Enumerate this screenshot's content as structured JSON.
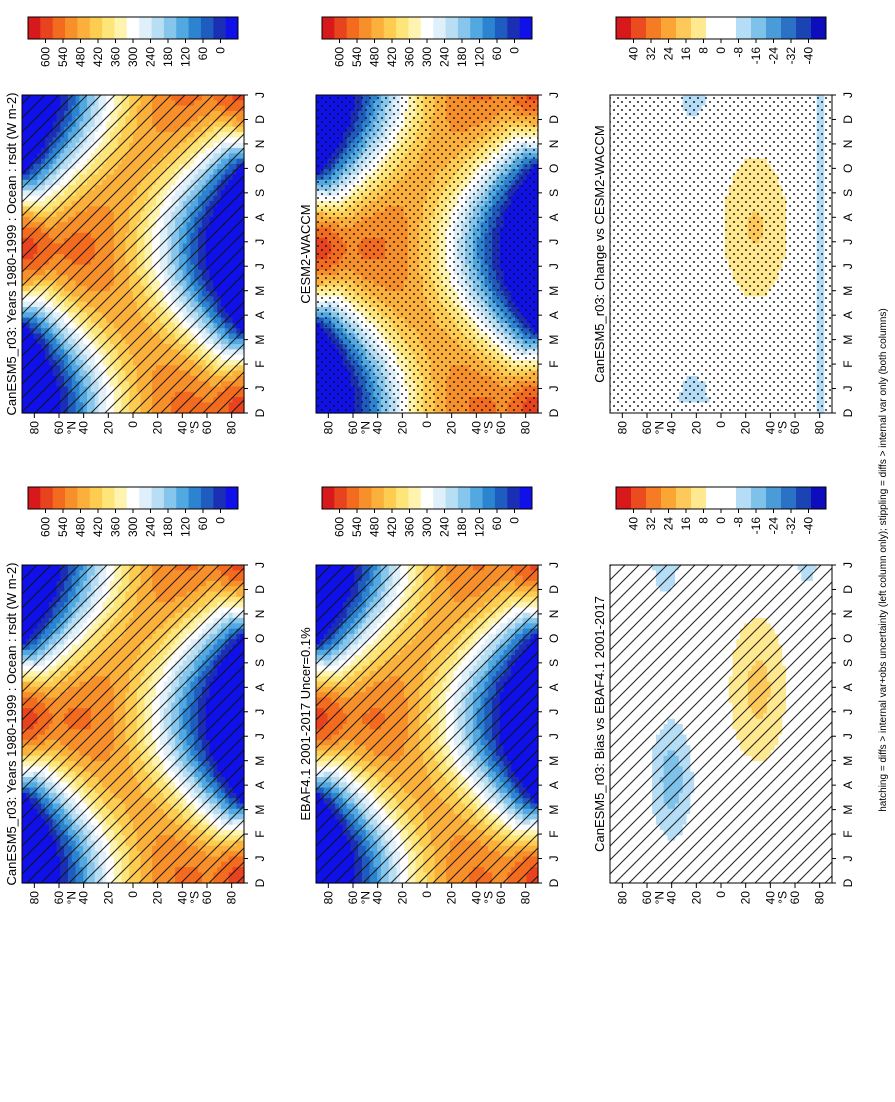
{
  "footnote": "hatching = diffs > internal var+obs uncertainty (left column only); stippling = diffs > internal var only (both columns)",
  "months": [
    "D",
    "J",
    "F",
    "M",
    "A",
    "M",
    "J",
    "J",
    "A",
    "S",
    "O",
    "N",
    "D",
    "J"
  ],
  "lat_ticks": [
    "80",
    "60",
    "40",
    "20",
    "0",
    "20",
    "40",
    "60",
    "80"
  ],
  "lat_unit": "°N / °S",
  "lat_N": "°N",
  "lat_S": "°S",
  "colorbar_abs_ticks": [
    "600",
    "540",
    "480",
    "420",
    "360",
    "300",
    "240",
    "180",
    "120",
    "60",
    "0"
  ],
  "colorbar_diff_ticks": [
    "40",
    "32",
    "24",
    "16",
    "8",
    "0",
    "-8",
    "-16",
    "-24",
    "-32",
    "-40"
  ],
  "palette_abs": [
    "#d7191c",
    "#e8431f",
    "#f26b1f",
    "#f7902a",
    "#fbb03b",
    "#fdcc50",
    "#fee57a",
    "#fff3b0",
    "#ffffff",
    "#e0f0fb",
    "#b8def4",
    "#86c6ec",
    "#52a8e0",
    "#2c84d0",
    "#1f5cc0",
    "#1b2fb5",
    "#1010e8"
  ],
  "palette_diff": [
    "#d7191c",
    "#ea4b1f",
    "#f57b25",
    "#fba534",
    "#fdc95a",
    "#fee890",
    "#ffffff",
    "#ffffff",
    "#b5def6",
    "#7ec2ea",
    "#4a9cd8",
    "#2b72c6",
    "#1a44b4",
    "#0d0dbd"
  ],
  "chart_data": [
    {
      "type": "heatmap",
      "panel": "top-left",
      "title": "CanESM5_r03: Years 1980-1999 : Ocean : rsdt",
      "units": "(W m-2)",
      "x": "month",
      "y": "latitude",
      "ylim": [
        -90,
        90
      ],
      "colorbar": "0 to 600",
      "overlay": "hatching"
    },
    {
      "type": "heatmap",
      "panel": "middle-left",
      "title": "EBAF4.1 2001-2017 Uncer=0.1%",
      "x": "month",
      "y": "latitude",
      "ylim": [
        -90,
        90
      ],
      "colorbar": "0 to 600",
      "overlay": "hatching"
    },
    {
      "type": "heatmap",
      "panel": "bottom-left",
      "title": "CanESM5_r03: Bias vs EBAF4.1 2001-2017",
      "x": "month",
      "y": "latitude",
      "ylim": [
        -90,
        90
      ],
      "colorbar": "-40 to 40",
      "overlay": "hatching"
    },
    {
      "type": "heatmap",
      "panel": "top-right",
      "title": "CanESM5_r03: Years 1980-1999 : Ocean : rsdt",
      "units": "(W m-2)",
      "x": "month",
      "y": "latitude",
      "ylim": [
        -90,
        90
      ],
      "colorbar": "0 to 600",
      "overlay": "stippling"
    },
    {
      "type": "heatmap",
      "panel": "middle-right",
      "title": "CESM2-WACCM",
      "x": "month",
      "y": "latitude",
      "ylim": [
        -90,
        90
      ],
      "colorbar": "0 to 600",
      "overlay": "stippling"
    },
    {
      "type": "heatmap",
      "panel": "bottom-right",
      "title": "CanESM5_r03: Change vs CESM2-WACCM",
      "x": "month",
      "y": "latitude",
      "ylim": [
        -90,
        90
      ],
      "colorbar": "-40 to 40",
      "overlay": "stippling"
    }
  ]
}
